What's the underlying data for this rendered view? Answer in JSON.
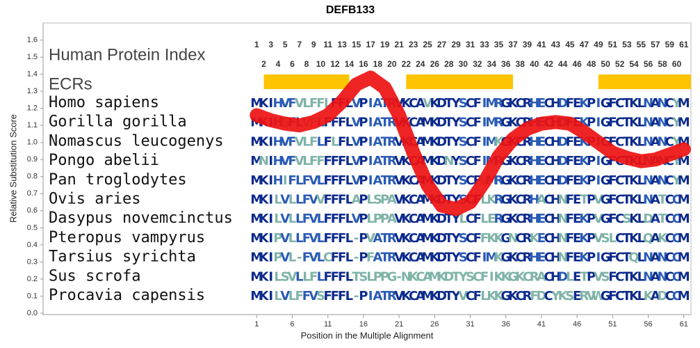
{
  "chart_data": {
    "type": "line",
    "title": "DEFB133",
    "y_label": "Relative Substitution Score",
    "x_label": "Position in the Multiple Alignment",
    "xlim": [
      -29,
      62
    ],
    "ylim": [
      0,
      1.7
    ],
    "xticks": [
      1,
      6,
      11,
      16,
      21,
      26,
      31,
      36,
      41,
      46,
      51,
      56,
      61
    ],
    "yticks": [
      {
        "value": 0,
        "label": "0.0"
      },
      0.1,
      0.2,
      0.3,
      0.4,
      0.5,
      0.6,
      0.7,
      0.8,
      0.9,
      {
        "value": 1,
        "label": "1.0"
      },
      1.1,
      1.2,
      1.3,
      1.4,
      1.5,
      1.6
    ],
    "grid": false,
    "color": "#ee1111",
    "x": [
      1,
      3,
      5,
      7,
      9,
      11,
      13,
      15,
      17,
      19,
      21,
      23,
      25,
      27,
      29,
      31,
      33,
      35,
      37,
      39,
      41,
      43,
      45,
      47,
      49,
      51,
      53,
      55,
      57,
      59,
      61
    ],
    "values": [
      1.16,
      1.13,
      1.11,
      1.1,
      1.12,
      1.16,
      1.24,
      1.34,
      1.38,
      1.32,
      1.16,
      0.94,
      0.75,
      0.63,
      0.61,
      0.65,
      0.77,
      0.92,
      1.02,
      1.08,
      1.11,
      1.12,
      1.11,
      1.06,
      1.0,
      0.94,
      0.91,
      0.89,
      0.9,
      0.93,
      0.96
    ],
    "index_label": "Human Protein Index",
    "index_top": [
      1,
      3,
      5,
      7,
      9,
      11,
      13,
      15,
      17,
      19,
      21,
      23,
      25,
      27,
      29,
      31,
      33,
      35,
      37,
      39,
      41,
      43,
      45,
      47,
      49,
      51,
      53,
      55,
      57,
      59,
      61
    ],
    "index_bottom": [
      2,
      4,
      6,
      8,
      10,
      12,
      14,
      16,
      18,
      20,
      22,
      24,
      26,
      28,
      30,
      32,
      34,
      36,
      38,
      40,
      42,
      44,
      46,
      48,
      50,
      52,
      54,
      56,
      58,
      60
    ],
    "ecr_label": "ECRs",
    "ecr_color": "#ffc400",
    "ecrs": [
      [
        2,
        14
      ],
      [
        22,
        37
      ],
      [
        49,
        62
      ]
    ],
    "species": [
      "Homo sapiens",
      "Gorilla gorilla",
      "Nomascus leucogenys",
      "Pongo abelii",
      "Pan troglodytes",
      "Ovis aries",
      "Dasypus novemcinctus",
      "Pteropus vampyrus",
      "Tarsius syrichta",
      "Sus scrofa",
      "Procavia capensis"
    ],
    "sequences": [
      "MKIHVFVLFFLFFLVPIATRVKCAVKDTYSCFIMRGKCRHECHDFEKPIGFCTKLNANCYM",
      "MKIHGFLVFLFFFLVPIATRVKCAMKDTYSCFIMRGKCRHECHDFEKPIGFCTKLNANCYM",
      "MKIHVFVLFLFLFLVPIATRVKCAMKDTYSCFIMKGKCRHECHDFEKPIGFCTKLNANCYM",
      "MNIHVFVLFFFFFLVPIATRVKCAMKDNYSCFIMRGKCRHECHDFEKPIGFCTKLNANCYM",
      "MKIHIFLFVLFFFLVPIATRVKCAMKDTYSCFVMRGKCRHECHDFEKPIGFCTKLNANCYM",
      "MKILVLLFVVFFFLAPLSPAVKCAMKDTYSCFLKRGKCRHACHNFETPVGFCTKLNATCCM",
      "MKILVLLFVLFFFLVPLPPAVKCAMKDTYLCFLERGKCRHECHNFEKPVGFCSKLDATCCM",
      "MKIPVLLFVLFFFL-PVATRVKCAMKDTYSCFFKKGNCRKECHNFEKPVSLCTKLQAKCCM",
      "MKIPVL-FVLCFFL-PFATRVKCAMKDTYSCFIMKGKCRHECHNFEKPIGFCTQLNANCCM",
      "MKILSVLLFLFFFLTSLPPG-NKCAMKDTYSCFIKKGKCRACHDLETPVSFCTKLNANCCM",
      "MKILVLFFVSFFFL-PIATRVKCAMKDTYVCFLKKGKCRFDCYKSERVWGFCTKLKADCCM"
    ]
  }
}
